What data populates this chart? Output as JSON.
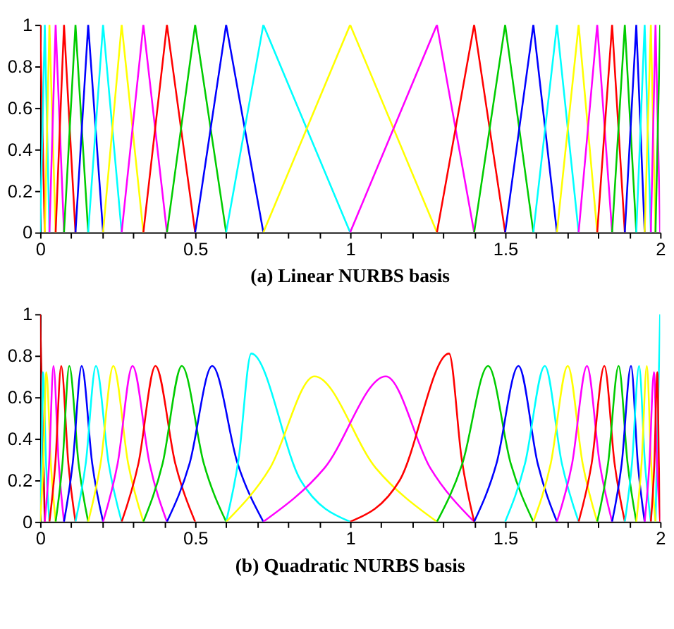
{
  "chart_data": [
    {
      "type": "line",
      "title": "(a) Linear NURBS basis",
      "xlim": [
        0,
        2
      ],
      "ylim": [
        0,
        1
      ],
      "grid": false,
      "xticks": [
        0,
        {
          "value": 0.1,
          "label": null
        },
        {
          "value": 0.2,
          "label": null
        },
        {
          "value": 0.3,
          "label": null
        },
        {
          "value": 0.4,
          "label": null
        },
        0.5,
        {
          "value": 0.6,
          "label": null
        },
        {
          "value": 0.7,
          "label": null
        },
        {
          "value": 0.8,
          "label": null
        },
        {
          "value": 0.9,
          "label": null
        },
        1,
        {
          "value": 1.1,
          "label": null
        },
        {
          "value": 1.2,
          "label": null
        },
        {
          "value": 1.3,
          "label": null
        },
        {
          "value": 1.4,
          "label": null
        },
        1.5,
        {
          "value": 1.6,
          "label": null
        },
        {
          "value": 1.7,
          "label": null
        },
        {
          "value": 1.8,
          "label": null
        },
        {
          "value": 1.9,
          "label": null
        },
        2
      ],
      "yticks": [
        0,
        0.2,
        0.4,
        0.6,
        0.8,
        1
      ],
      "series": [
        {
          "color": "#ff0000",
          "x": [
            0,
            0.015
          ],
          "values": [
            1,
            0
          ]
        },
        {
          "color": "#00ffff",
          "x": [
            0,
            0.015,
            0.03
          ],
          "values": [
            0,
            1,
            0
          ]
        },
        {
          "color": "#ffff00",
          "x": [
            0.015,
            0.03,
            0.05
          ],
          "values": [
            0,
            1,
            0
          ]
        },
        {
          "color": "#ff00ff",
          "x": [
            0.03,
            0.05,
            0.077
          ],
          "values": [
            0,
            1,
            0
          ]
        },
        {
          "color": "#ff0000",
          "x": [
            0.05,
            0.077,
            0.114
          ],
          "values": [
            0,
            1,
            0
          ]
        },
        {
          "color": "#00cc00",
          "x": [
            0.077,
            0.114,
            0.155
          ],
          "values": [
            0,
            1,
            0
          ]
        },
        {
          "color": "#0000ff",
          "x": [
            0.114,
            0.155,
            0.203
          ],
          "values": [
            0,
            1,
            0
          ]
        },
        {
          "color": "#00ffff",
          "x": [
            0.155,
            0.203,
            0.263
          ],
          "values": [
            0,
            1,
            0
          ]
        },
        {
          "color": "#ffff00",
          "x": [
            0.203,
            0.263,
            0.333
          ],
          "values": [
            0,
            1,
            0
          ]
        },
        {
          "color": "#ff00ff",
          "x": [
            0.263,
            0.333,
            0.409
          ],
          "values": [
            0,
            1,
            0
          ]
        },
        {
          "color": "#ff0000",
          "x": [
            0.333,
            0.409,
            0.5
          ],
          "values": [
            0,
            1,
            0
          ]
        },
        {
          "color": "#00cc00",
          "x": [
            0.409,
            0.5,
            0.6
          ],
          "values": [
            0,
            1,
            0
          ]
        },
        {
          "color": "#0000ff",
          "x": [
            0.5,
            0.6,
            0.72
          ],
          "values": [
            0,
            1,
            0
          ]
        },
        {
          "color": "#00ffff",
          "x": [
            0.6,
            0.72,
            1.0
          ],
          "values": [
            0,
            1,
            0
          ]
        },
        {
          "color": "#ffff00",
          "x": [
            0.72,
            1.0,
            1.28
          ],
          "values": [
            0,
            1,
            0
          ]
        },
        {
          "color": "#ff00ff",
          "x": [
            1.0,
            1.28,
            1.4
          ],
          "values": [
            0,
            1,
            0
          ]
        },
        {
          "color": "#ff0000",
          "x": [
            1.28,
            1.4,
            1.5
          ],
          "values": [
            0,
            1,
            0
          ]
        },
        {
          "color": "#00cc00",
          "x": [
            1.4,
            1.5,
            1.591
          ],
          "values": [
            0,
            1,
            0
          ]
        },
        {
          "color": "#0000ff",
          "x": [
            1.5,
            1.591,
            1.667
          ],
          "values": [
            0,
            1,
            0
          ]
        },
        {
          "color": "#00ffff",
          "x": [
            1.591,
            1.667,
            1.737
          ],
          "values": [
            0,
            1,
            0
          ]
        },
        {
          "color": "#ffff00",
          "x": [
            1.667,
            1.737,
            1.797
          ],
          "values": [
            0,
            1,
            0
          ]
        },
        {
          "color": "#ff00ff",
          "x": [
            1.737,
            1.797,
            1.845
          ],
          "values": [
            0,
            1,
            0
          ]
        },
        {
          "color": "#ff0000",
          "x": [
            1.797,
            1.845,
            1.886
          ],
          "values": [
            0,
            1,
            0
          ]
        },
        {
          "color": "#00cc00",
          "x": [
            1.845,
            1.886,
            1.923
          ],
          "values": [
            0,
            1,
            0
          ]
        },
        {
          "color": "#0000ff",
          "x": [
            1.886,
            1.923,
            1.95
          ],
          "values": [
            0,
            1,
            0
          ]
        },
        {
          "color": "#00ffff",
          "x": [
            1.923,
            1.95,
            1.97
          ],
          "values": [
            0,
            1,
            0
          ]
        },
        {
          "color": "#ffff00",
          "x": [
            1.95,
            1.97,
            1.985
          ],
          "values": [
            0,
            1,
            0
          ]
        },
        {
          "color": "#ff00ff",
          "x": [
            1.97,
            1.985,
            2
          ],
          "values": [
            0,
            1,
            0
          ]
        },
        {
          "color": "#00cc00",
          "x": [
            1.985,
            2
          ],
          "values": [
            0,
            1
          ]
        }
      ]
    },
    {
      "type": "line",
      "title": "(b) Quadratic NURBS basis",
      "xlim": [
        0,
        2
      ],
      "ylim": [
        0,
        1
      ],
      "grid": false,
      "xticks": [
        0,
        {
          "value": 0.1,
          "label": null
        },
        {
          "value": 0.2,
          "label": null
        },
        {
          "value": 0.3,
          "label": null
        },
        {
          "value": 0.4,
          "label": null
        },
        0.5,
        {
          "value": 0.6,
          "label": null
        },
        {
          "value": 0.7,
          "label": null
        },
        {
          "value": 0.8,
          "label": null
        },
        {
          "value": 0.9,
          "label": null
        },
        1,
        {
          "value": 1.1,
          "label": null
        },
        {
          "value": 1.2,
          "label": null
        },
        {
          "value": 1.3,
          "label": null
        },
        {
          "value": 1.4,
          "label": null
        },
        1.5,
        {
          "value": 1.6,
          "label": null
        },
        {
          "value": 1.7,
          "label": null
        },
        {
          "value": 1.8,
          "label": null
        },
        {
          "value": 1.9,
          "label": null
        },
        2
      ],
      "yticks": [
        0,
        0.2,
        0.4,
        0.6,
        0.8,
        1
      ],
      "series": [
        {
          "color": "#cc0000",
          "x": [
            0,
            0.015
          ],
          "values": [
            1,
            0
          ]
        },
        {
          "color": "#00ffff",
          "x": [
            0,
            0.0045,
            0.009,
            0.0195,
            0.03
          ],
          "values": [
            0,
            0.27,
            0.72,
            0.27,
            0
          ]
        },
        {
          "color": "#ffff00",
          "x": [
            0,
            0.01,
            0.02,
            0.035,
            0.05
          ],
          "values": [
            0,
            0.27,
            0.72,
            0.27,
            0
          ]
        },
        {
          "color": "#ff00ff",
          "x": [
            0.015,
            0.029,
            0.043,
            0.06,
            0.077
          ],
          "values": [
            0,
            0.28,
            0.75,
            0.28,
            0
          ]
        },
        {
          "color": "#ff0000",
          "x": [
            0.03,
            0.049,
            0.068,
            0.091,
            0.114
          ],
          "values": [
            0,
            0.28,
            0.75,
            0.28,
            0
          ]
        },
        {
          "color": "#00cc00",
          "x": [
            0.05,
            0.072,
            0.094,
            0.124,
            0.155
          ],
          "values": [
            0,
            0.28,
            0.75,
            0.28,
            0
          ]
        },
        {
          "color": "#0000ff",
          "x": [
            0.077,
            0.105,
            0.134,
            0.168,
            0.203
          ],
          "values": [
            0,
            0.28,
            0.75,
            0.28,
            0
          ]
        },
        {
          "color": "#00ffff",
          "x": [
            0.114,
            0.147,
            0.18,
            0.221,
            0.263
          ],
          "values": [
            0,
            0.28,
            0.75,
            0.28,
            0
          ]
        },
        {
          "color": "#ffff00",
          "x": [
            0.155,
            0.195,
            0.236,
            0.284,
            0.333
          ],
          "values": [
            0,
            0.28,
            0.75,
            0.28,
            0
          ]
        },
        {
          "color": "#ff00ff",
          "x": [
            0.203,
            0.25,
            0.298,
            0.353,
            0.409
          ],
          "values": [
            0,
            0.28,
            0.75,
            0.28,
            0
          ]
        },
        {
          "color": "#ff0000",
          "x": [
            0.263,
            0.317,
            0.372,
            0.436,
            0.5
          ],
          "values": [
            0,
            0.28,
            0.75,
            0.28,
            0
          ]
        },
        {
          "color": "#00cc00",
          "x": [
            0.333,
            0.395,
            0.457,
            0.528,
            0.6
          ],
          "values": [
            0,
            0.28,
            0.75,
            0.28,
            0
          ]
        },
        {
          "color": "#0000ff",
          "x": [
            0.409,
            0.482,
            0.555,
            0.637,
            0.72
          ],
          "values": [
            0,
            0.28,
            0.75,
            0.28,
            0
          ]
        },
        {
          "color": "#00ffff",
          "x": [
            0.6,
            0.64,
            0.681,
            0.84,
            1.0
          ],
          "values": [
            0,
            0.3,
            0.81,
            0.2,
            0
          ]
        },
        {
          "color": "#ffff00",
          "x": [
            0.6,
            0.742,
            0.885,
            1.082,
            1.28
          ],
          "values": [
            0,
            0.26,
            0.7,
            0.26,
            0
          ]
        },
        {
          "color": "#ff00ff",
          "x": [
            0.72,
            0.918,
            1.115,
            1.258,
            1.4
          ],
          "values": [
            0,
            0.26,
            0.7,
            0.26,
            0
          ]
        },
        {
          "color": "#ff0000",
          "x": [
            1.0,
            1.16,
            1.319,
            1.36,
            1.4
          ],
          "values": [
            0,
            0.2,
            0.81,
            0.3,
            0
          ]
        },
        {
          "color": "#00cc00",
          "x": [
            1.28,
            1.362,
            1.445,
            1.518,
            1.591
          ],
          "values": [
            0,
            0.28,
            0.75,
            0.28,
            0
          ]
        },
        {
          "color": "#0000ff",
          "x": [
            1.4,
            1.472,
            1.543,
            1.605,
            1.667
          ],
          "values": [
            0,
            0.28,
            0.75,
            0.28,
            0
          ]
        },
        {
          "color": "#00ffff",
          "x": [
            1.5,
            1.564,
            1.628,
            1.683,
            1.737
          ],
          "values": [
            0,
            0.28,
            0.75,
            0.28,
            0
          ]
        },
        {
          "color": "#ffff00",
          "x": [
            1.591,
            1.647,
            1.702,
            1.75,
            1.797
          ],
          "values": [
            0,
            0.28,
            0.75,
            0.28,
            0
          ]
        },
        {
          "color": "#ff00ff",
          "x": [
            1.667,
            1.716,
            1.764,
            1.805,
            1.845
          ],
          "values": [
            0,
            0.28,
            0.75,
            0.28,
            0
          ]
        },
        {
          "color": "#ff0000",
          "x": [
            1.737,
            1.779,
            1.82,
            1.853,
            1.886
          ],
          "values": [
            0,
            0.28,
            0.75,
            0.28,
            0
          ]
        },
        {
          "color": "#00cc00",
          "x": [
            1.797,
            1.832,
            1.866,
            1.895,
            1.923
          ],
          "values": [
            0,
            0.28,
            0.75,
            0.28,
            0
          ]
        },
        {
          "color": "#0000ff",
          "x": [
            1.845,
            1.876,
            1.906,
            1.928,
            1.95
          ],
          "values": [
            0,
            0.28,
            0.75,
            0.28,
            0
          ]
        },
        {
          "color": "#00ffff",
          "x": [
            1.886,
            1.909,
            1.932,
            1.951,
            1.97
          ],
          "values": [
            0,
            0.28,
            0.75,
            0.28,
            0
          ]
        },
        {
          "color": "#ffff00",
          "x": [
            1.923,
            1.94,
            1.957,
            1.971,
            1.985
          ],
          "values": [
            0,
            0.28,
            0.75,
            0.28,
            0
          ]
        },
        {
          "color": "#ff00ff",
          "x": [
            1.95,
            1.965,
            1.98,
            1.99,
            2
          ],
          "values": [
            0,
            0.27,
            0.72,
            0.27,
            0
          ]
        },
        {
          "color": "#ff0000",
          "x": [
            1.97,
            1.981,
            1.991,
            1.996,
            2
          ],
          "values": [
            0,
            0.27,
            0.72,
            0.27,
            0
          ]
        },
        {
          "color": "#00ffff",
          "x": [
            1.985,
            2
          ],
          "values": [
            0,
            1
          ]
        }
      ]
    }
  ]
}
